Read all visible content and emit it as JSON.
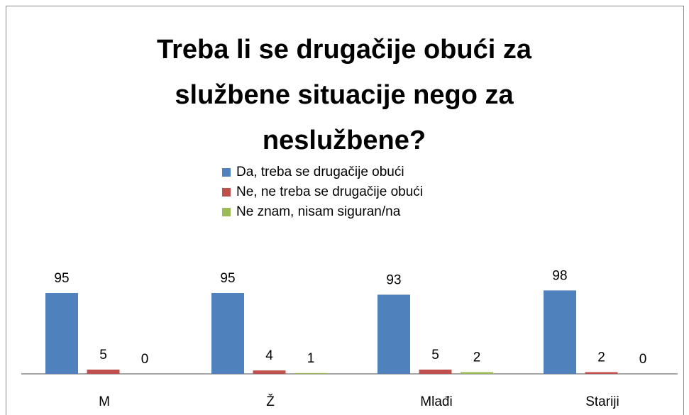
{
  "chart_data": {
    "type": "bar",
    "title": "Treba li se drugačije obući za službene situacije nego za neslužbene?",
    "categories": [
      "M",
      "Ž",
      "Mlađi",
      "Stariji"
    ],
    "series": [
      {
        "name": "Da, treba se drugačije obući",
        "color": "#4f81bd",
        "values": [
          95,
          95,
          93,
          98
        ]
      },
      {
        "name": "Ne, ne treba se drugačije obući",
        "color": "#c0504d",
        "values": [
          5,
          4,
          5,
          2
        ]
      },
      {
        "name": "Ne znam, nisam siguran/na",
        "color": "#9bbb59",
        "values": [
          0,
          1,
          2,
          0
        ]
      }
    ],
    "legend": "top"
  }
}
